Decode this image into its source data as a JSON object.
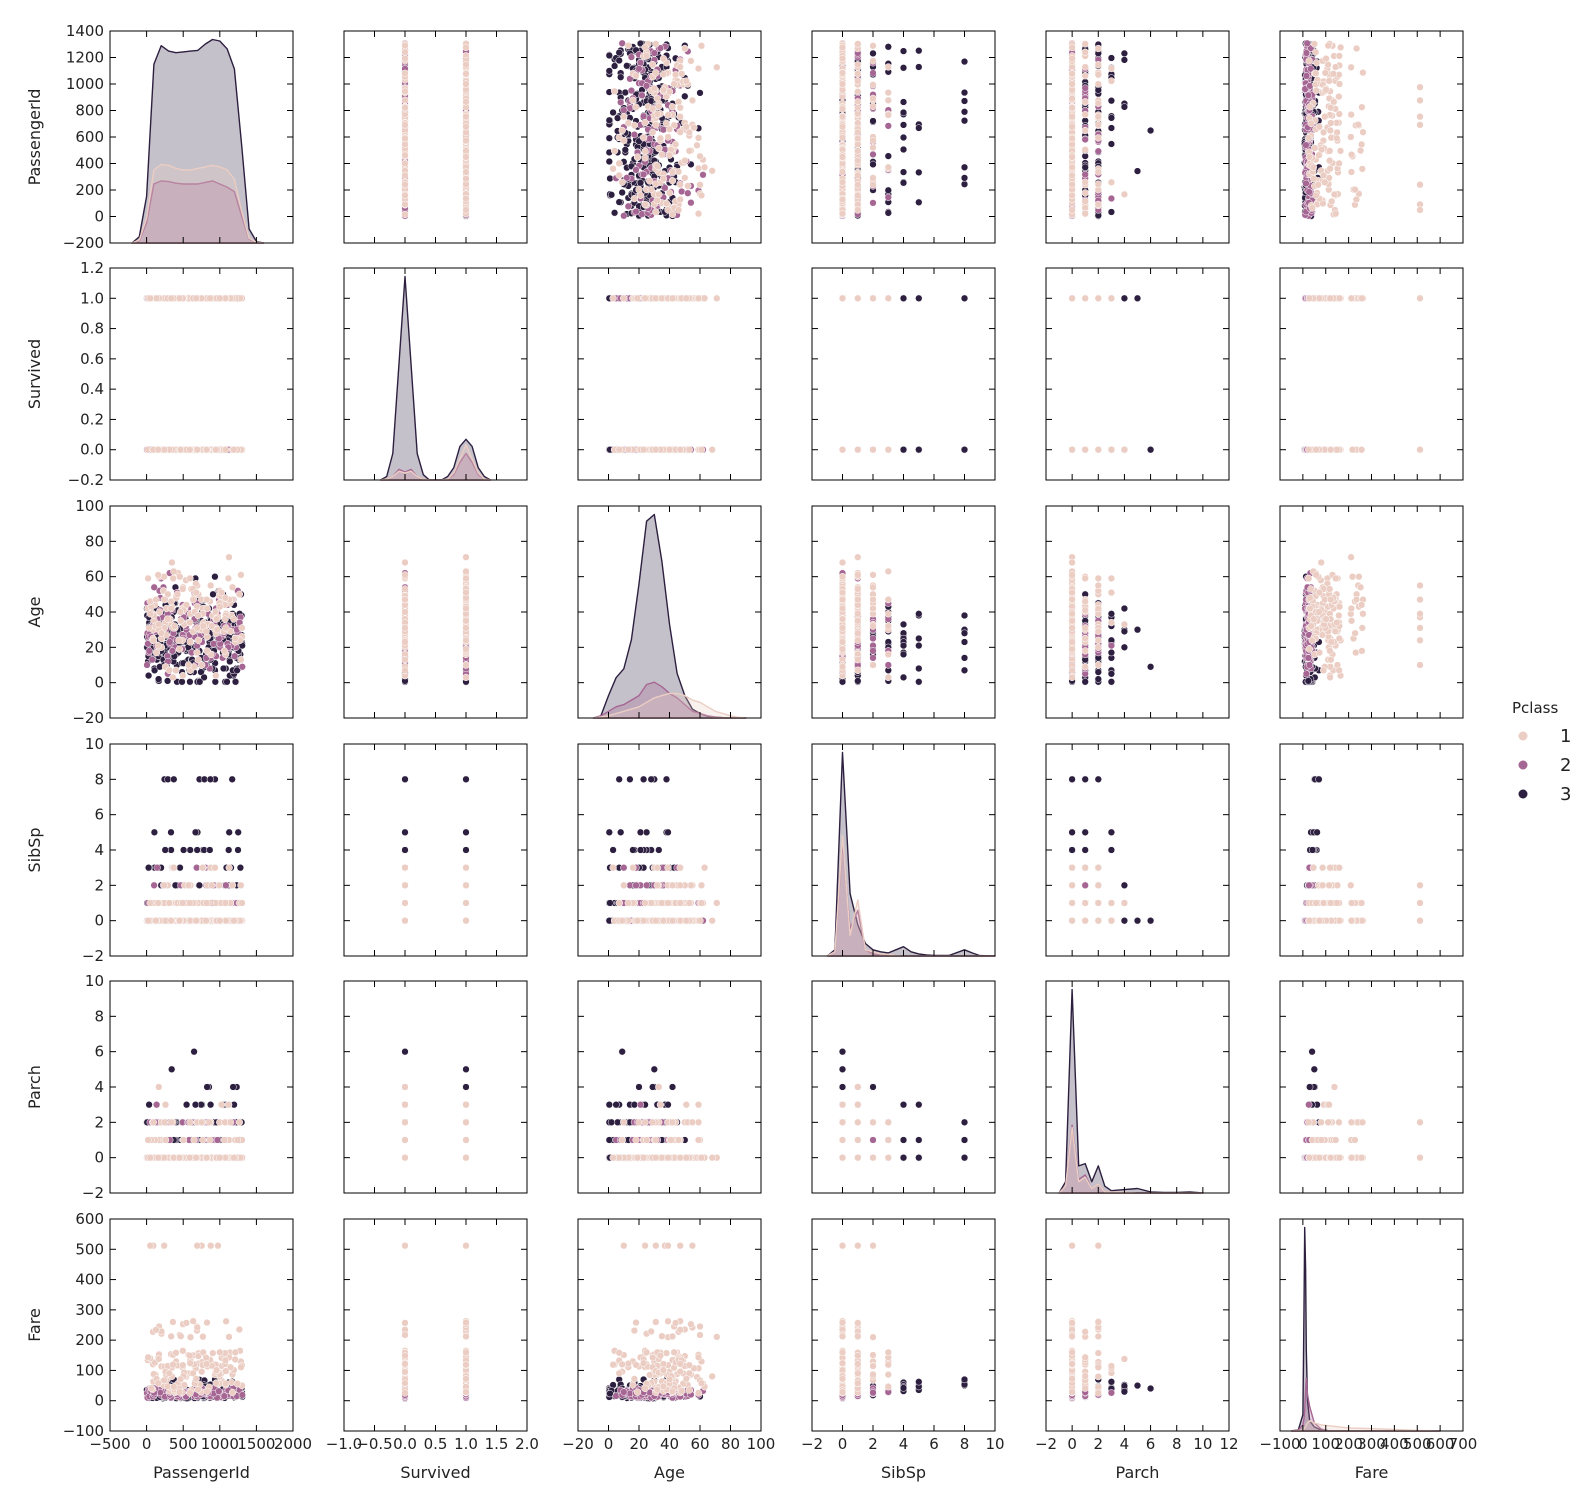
{
  "chart_data": {
    "type": "scatter",
    "kind": "pairplot",
    "variables": [
      "PassengerId",
      "Survived",
      "Age",
      "SibSp",
      "Parch",
      "Fare"
    ],
    "hue": {
      "title": "Pclass",
      "levels": [
        "1",
        "2",
        "3"
      ],
      "colors": [
        "#ebcdc3",
        "#a66694",
        "#2d1f3f"
      ]
    },
    "axes": {
      "PassengerId": {
        "lim": [
          -500,
          2000
        ],
        "ticks": [
          -500,
          0,
          500,
          1000,
          1500,
          2000
        ],
        "ylim": [
          -200,
          1400
        ],
        "yticks": [
          -200,
          0,
          200,
          400,
          600,
          800,
          1000,
          1200,
          1400
        ]
      },
      "Survived": {
        "lim": [
          -1.0,
          2.0
        ],
        "ticks": [
          -1.0,
          -0.5,
          0.0,
          0.5,
          1.0,
          1.5,
          2.0
        ],
        "tick_labels": [
          "−1.0",
          "−0.5",
          "0.0",
          "0.5",
          "1.0",
          "1.5",
          "2.0"
        ],
        "ylim": [
          -0.2,
          1.2
        ],
        "yticks": [
          -0.2,
          0.0,
          0.2,
          0.4,
          0.6,
          0.8,
          1.0,
          1.2
        ],
        "ytick_labels": [
          "−0.2",
          "0.0",
          "0.2",
          "0.4",
          "0.6",
          "0.8",
          "1.0",
          "1.2"
        ]
      },
      "Age": {
        "lim": [
          -20,
          100
        ],
        "ticks": [
          -20,
          0,
          20,
          40,
          60,
          80,
          100
        ],
        "ylim": [
          -20,
          100
        ],
        "yticks": [
          -20,
          0,
          20,
          40,
          60,
          80,
          100
        ]
      },
      "SibSp": {
        "lim": [
          -2,
          10
        ],
        "ticks": [
          -2,
          0,
          2,
          4,
          6,
          8,
          10
        ],
        "ylim": [
          -2,
          10
        ],
        "yticks": [
          -2,
          0,
          2,
          4,
          6,
          8,
          10
        ]
      },
      "Parch": {
        "lim": [
          -2,
          12
        ],
        "ticks": [
          -2,
          0,
          2,
          4,
          6,
          8,
          10,
          12
        ],
        "ylim": [
          -2,
          10
        ],
        "yticks": [
          -2,
          0,
          2,
          4,
          6,
          8,
          10
        ]
      },
      "Fare": {
        "lim": [
          -100,
          700
        ],
        "ticks": [
          -100,
          0,
          100,
          200,
          300,
          400,
          500,
          600,
          700
        ],
        "tick_labels": [
          "−100",
          "0",
          "100",
          "200",
          "300",
          "400",
          "500",
          "600",
          "700"
        ],
        "ylim": [
          -100,
          600
        ],
        "yticks": [
          -100,
          0,
          100,
          200,
          300,
          400,
          500,
          600
        ]
      }
    },
    "distributions": {
      "PassengerId": {
        "x": [
          -200,
          -100,
          0,
          100,
          200,
          300,
          400,
          500,
          600,
          700,
          800,
          900,
          1000,
          1100,
          1200,
          1300,
          1400,
          1500,
          1600
        ],
        "series": [
          {
            "level": "3",
            "density": [
              0,
              40,
              300,
              1150,
              1270,
              1235,
              1225,
              1230,
              1235,
              1240,
              1280,
              1310,
              1300,
              1250,
              1120,
              620,
              90,
              10,
              0
            ]
          },
          {
            "level": "2",
            "density": [
              0,
              15,
              130,
              380,
              400,
              395,
              385,
              380,
              380,
              380,
              390,
              400,
              380,
              360,
              330,
              170,
              25,
              5,
              0
            ]
          },
          {
            "level": "1",
            "density": [
              0,
              20,
              160,
              470,
              505,
              500,
              480,
              470,
              470,
              480,
              490,
              500,
              490,
              470,
              410,
              200,
              30,
              5,
              0
            ]
          }
        ]
      },
      "Survived": {
        "x": [
          -0.4,
          -0.3,
          -0.2,
          -0.1,
          0.0,
          0.1,
          0.2,
          0.3,
          0.4,
          0.5,
          0.6,
          0.7,
          0.8,
          0.9,
          1.0,
          1.1,
          1.2,
          1.3,
          1.4
        ],
        "series": [
          {
            "level": "3",
            "density": [
              0,
              0.02,
              0.15,
              0.65,
              1.15,
              0.65,
              0.15,
              0.03,
              0.0,
              0.0,
              0.0,
              0.02,
              0.07,
              0.19,
              0.23,
              0.19,
              0.07,
              0.02,
              0
            ]
          },
          {
            "level": "2",
            "density": [
              0,
              0.005,
              0.02,
              0.06,
              0.045,
              0.06,
              0.02,
              0.005,
              0.0,
              0.0,
              0.0,
              0.005,
              0.03,
              0.1,
              0.15,
              0.1,
              0.03,
              0.005,
              0
            ]
          },
          {
            "level": "1",
            "density": [
              0,
              0.005,
              0.02,
              0.05,
              0.04,
              0.05,
              0.02,
              0.005,
              0.0,
              0.0,
              0.0,
              0.005,
              0.04,
              0.12,
              0.2,
              0.12,
              0.04,
              0.005,
              0
            ]
          }
        ]
      },
      "Age": {
        "x": [
          -10,
          -5,
          0,
          5,
          10,
          15,
          20,
          25,
          30,
          35,
          40,
          45,
          50,
          55,
          60,
          65,
          70,
          75,
          80,
          85,
          90
        ],
        "series": [
          {
            "level": "3",
            "density": [
              0,
              1,
              10,
              18,
              22,
              35,
              60,
              88,
              91,
              70,
              42,
              20,
              10,
              4,
              2,
              0.8,
              0.3,
              0.1,
              0,
              0,
              0
            ]
          },
          {
            "level": "2",
            "density": [
              0,
              1,
              3,
              5,
              6,
              8,
              10,
              15,
              16,
              14,
              11,
              9,
              6,
              3,
              2,
              1,
              0.5,
              0.2,
              0,
              0,
              0
            ]
          },
          {
            "level": "1",
            "density": [
              0,
              0.5,
              1,
              2,
              3,
              4,
              5,
              7,
              9,
              10,
              11,
              11,
              10,
              8,
              7,
              5,
              3,
              2,
              1,
              0.3,
              0
            ]
          }
        ]
      },
      "SibSp": {
        "x": [
          -1,
          -0.5,
          0,
          0.5,
          1,
          1.5,
          2,
          2.5,
          3,
          3.5,
          4,
          4.5,
          5,
          5.5,
          6,
          7,
          8,
          8.5,
          9,
          10
        ],
        "series": [
          {
            "level": "3",
            "density": [
              0,
              0.3,
              9.8,
              3.0,
              1.5,
              0.6,
              0.3,
              0.2,
              0.15,
              0.3,
              0.45,
              0.2,
              0.1,
              0.05,
              0.03,
              0.03,
              0.3,
              0.15,
              0.02,
              0
            ]
          },
          {
            "level": "2",
            "density": [
              0,
              0.2,
              5.5,
              1.3,
              2.2,
              0.3,
              0.1,
              0.05,
              0.05,
              0.02,
              0.01,
              0,
              0,
              0,
              0,
              0,
              0,
              0,
              0,
              0
            ]
          },
          {
            "level": "1",
            "density": [
              0,
              0.2,
              5.8,
              1.0,
              2.7,
              0.3,
              0.2,
              0.1,
              0.08,
              0.02,
              0,
              0,
              0,
              0,
              0,
              0,
              0,
              0,
              0,
              0
            ]
          }
        ]
      },
      "Parch": {
        "x": [
          -1,
          -0.5,
          0,
          0.5,
          1,
          1.5,
          2,
          2.5,
          3,
          4,
          5,
          6,
          7,
          8,
          9,
          10
        ],
        "series": [
          {
            "level": "3",
            "density": [
              0,
              0.5,
              9.0,
              1.2,
              1.3,
              0.5,
              1.2,
              0.3,
              0.1,
              0.15,
              0.2,
              0.05,
              0.02,
              0.02,
              0.05,
              0
            ]
          },
          {
            "level": "2",
            "density": [
              0,
              0.3,
              3.0,
              0.6,
              0.8,
              0.2,
              0.4,
              0.05,
              0.05,
              0,
              0,
              0,
              0,
              0,
              0,
              0
            ]
          },
          {
            "level": "1",
            "density": [
              0,
              0.3,
              2.9,
              0.5,
              0.7,
              0.2,
              0.4,
              0.05,
              0.05,
              0.03,
              0,
              0,
              0,
              0,
              0,
              0
            ]
          }
        ]
      },
      "Fare": {
        "x": [
          -50,
          -20,
          0,
          5,
          8,
          12,
          15,
          20,
          30,
          50,
          80,
          120,
          200,
          300,
          500,
          600
        ],
        "series": [
          {
            "level": "3",
            "density": [
              0,
              0.5,
              8,
              60,
              100,
              80,
              40,
              15,
              5,
              2,
              0.5,
              0,
              0,
              0,
              0,
              0
            ]
          },
          {
            "level": "2",
            "density": [
              0,
              0.5,
              3,
              6,
              10,
              20,
              26,
              18,
              12,
              4,
              1,
              0,
              0,
              0,
              0,
              0
            ]
          },
          {
            "level": "1",
            "density": [
              0,
              0.2,
              0.5,
              1,
              1.5,
              2,
              3,
              4,
              5,
              4,
              3,
              2.5,
              1.5,
              1.2,
              0.3,
              0
            ]
          }
        ]
      }
    }
  }
}
